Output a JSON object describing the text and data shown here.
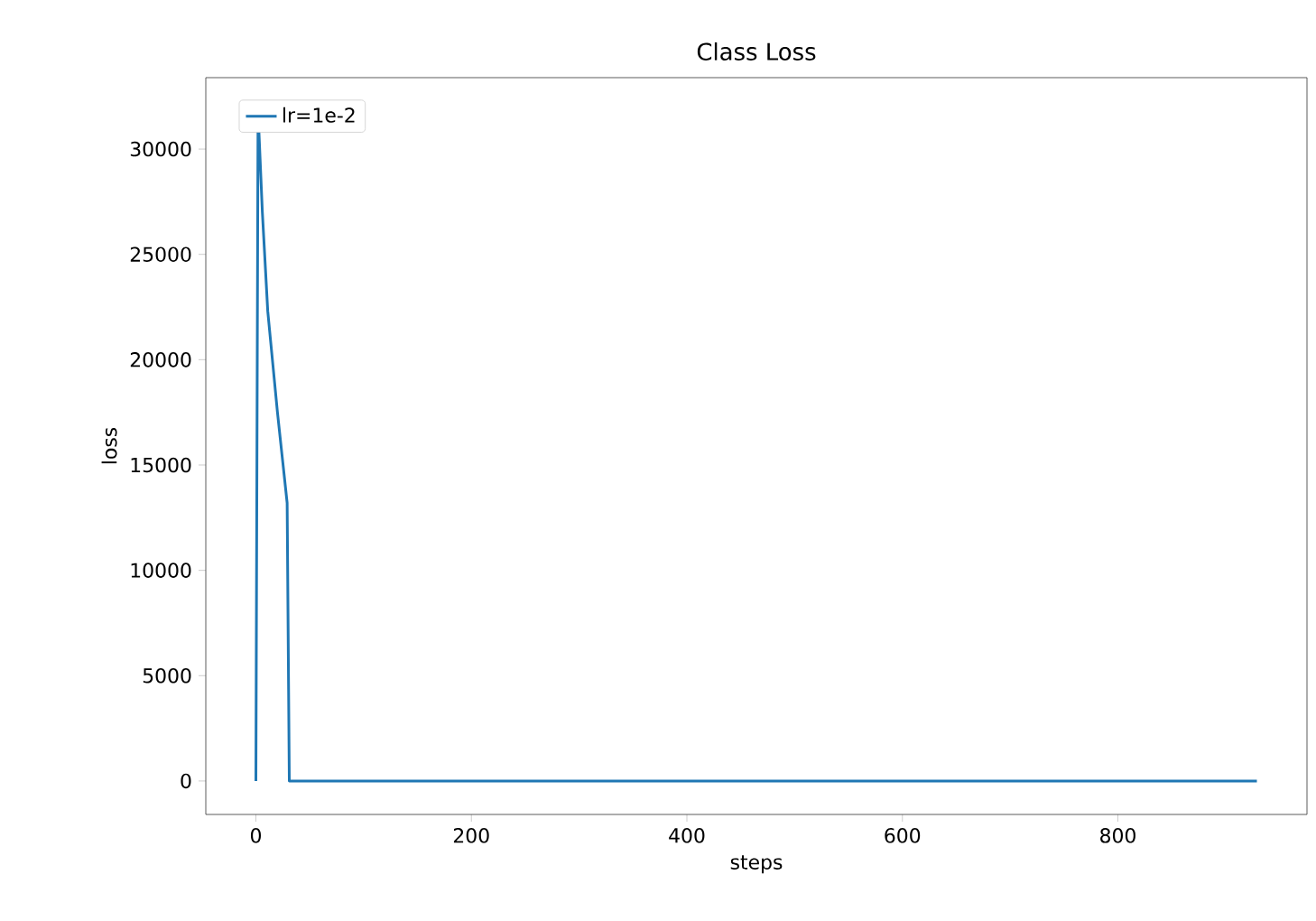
{
  "chart_data": {
    "type": "line",
    "title": "Class Loss",
    "xlabel": "steps",
    "ylabel": "loss",
    "series": [
      {
        "name": "lr=1e-2",
        "color": "#1f77b4",
        "x": [
          0,
          2,
          6,
          11,
          20,
          29,
          31,
          929
        ],
        "values": [
          0,
          31800,
          27000,
          22300,
          17500,
          13200,
          0,
          0
        ]
      }
    ],
    "xlim": [
      -46.5,
      975.5
    ],
    "ylim": [
      -1590,
      33390
    ],
    "xticks": [
      0,
      200,
      400,
      600,
      800
    ],
    "yticks": [
      0,
      5000,
      10000,
      15000,
      20000,
      25000,
      30000
    ],
    "legend": "top left",
    "grid": false
  }
}
